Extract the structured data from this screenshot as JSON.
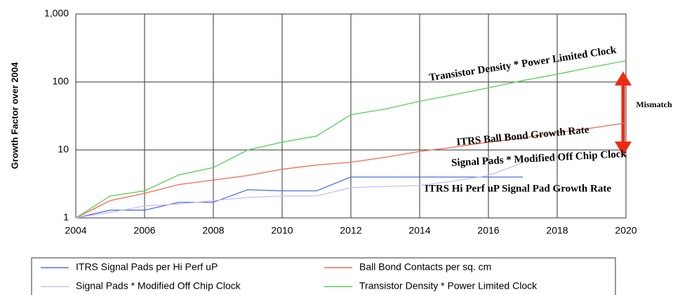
{
  "chart_data": {
    "type": "line",
    "y_label": "Growth Factor over 2004",
    "log_y": true,
    "grid": true,
    "x": [
      2004,
      2005,
      2006,
      2007,
      2008,
      2009,
      2010,
      2011,
      2012,
      2013,
      2014,
      2015,
      2016,
      2017,
      2018,
      2019,
      2020
    ],
    "xlim": [
      2004,
      2020
    ],
    "xticks": [
      2004,
      2006,
      2008,
      2010,
      2012,
      2014,
      2016,
      2018,
      2020
    ],
    "ylim": [
      1,
      1000
    ],
    "yticks": [
      1,
      10,
      100,
      {
        "value": 1000,
        "label": "1,000"
      }
    ],
    "legend": "bottom",
    "series": [
      {
        "name": "ITRS Signal Pads per Hi Perf uP",
        "color": "#4f6fe0",
        "values": [
          1,
          1.3,
          1.3,
          1.7,
          1.7,
          2.6,
          2.5,
          2.5,
          4,
          4,
          4,
          4,
          4,
          4,
          null,
          null,
          null
        ]
      },
      {
        "name": "Ball Bond Contacts per sq. cm",
        "color": "#ee6a50",
        "values": [
          1,
          1.8,
          2.3,
          3.1,
          3.6,
          4.2,
          5.2,
          6,
          6.6,
          7.8,
          9.5,
          11,
          13,
          15,
          18,
          21,
          25
        ]
      },
      {
        "name": "Signal Pads * Modified Off Chip Clock",
        "color": "#cbbff2",
        "values": [
          1,
          1.2,
          1.5,
          1.6,
          1.8,
          2.0,
          2.1,
          2.1,
          2.8,
          2.9,
          3,
          3.5,
          4.2,
          6.5,
          null,
          null,
          null
        ]
      },
      {
        "name": "Transistor Density * Power Limited Clock",
        "color": "#55d055",
        "values": [
          1,
          2.1,
          2.5,
          4.3,
          5.5,
          10,
          13,
          16,
          33,
          40,
          52,
          65,
          82,
          105,
          130,
          165,
          205
        ]
      }
    ],
    "annotations": [
      {
        "text": "Transistor Density * Power Limited Clock",
        "color": "#44c844"
      },
      {
        "text": "ITRS Ball Bond Growth Rate",
        "color": "#e8442c"
      },
      {
        "text": "Signal Pads * Modified Off Chip Clock",
        "color": "#b9a8ee"
      },
      {
        "text": "ITRS Hi Perf uP Signal Pad Growth Rate",
        "color": "#3350d8"
      },
      {
        "text": "Mismatch",
        "color": "#e8442c"
      }
    ]
  }
}
